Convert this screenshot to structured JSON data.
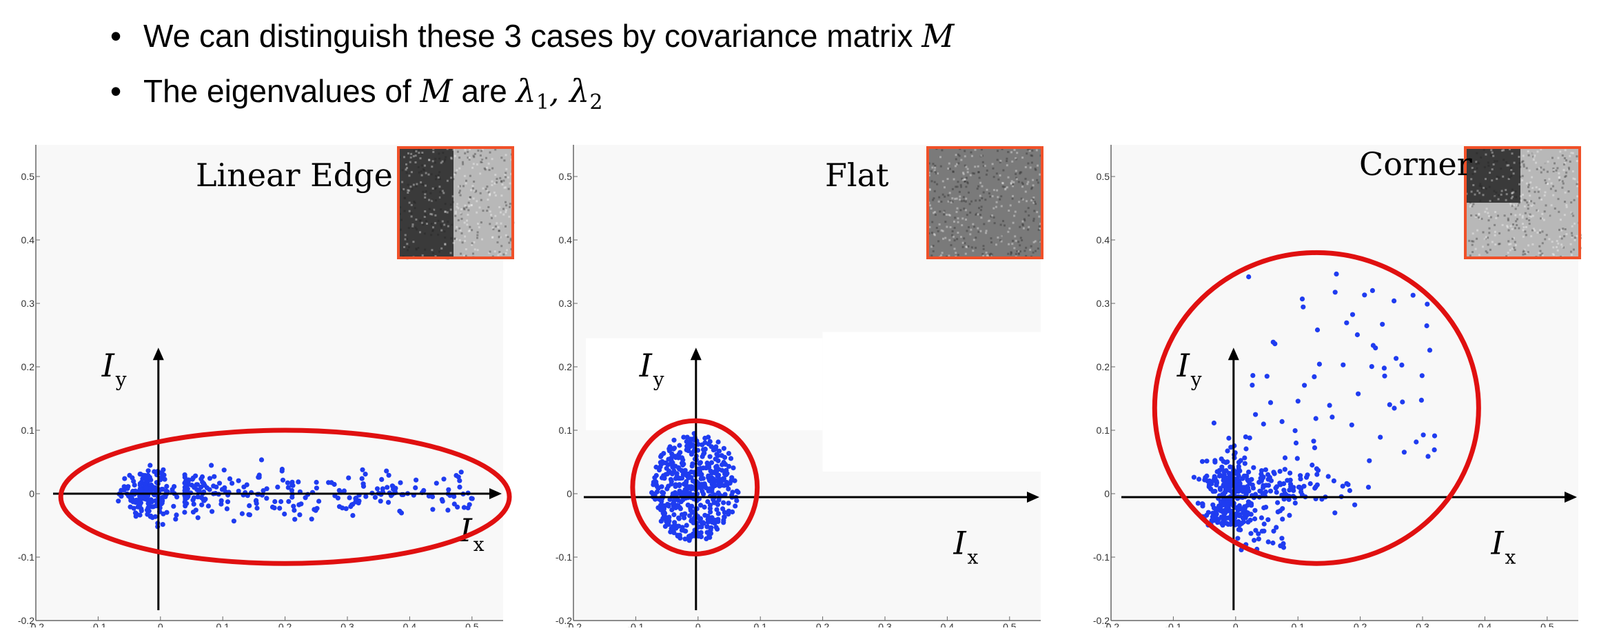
{
  "bullets": [
    {
      "text": "We can distinguish these 3 cases by covariance matrix ",
      "math": "M"
    },
    {
      "text_a": "The eigenvalues of ",
      "math_a": "M",
      "text_b": " are ",
      "lambda": "λ",
      "sub1": "1",
      "comma": ", ",
      "sub2": "2"
    }
  ],
  "colors": {
    "points": "#1f3cf0",
    "ellipse": "#e01010",
    "thumb_border": "#f05028",
    "panel_bg": "#f8f8f8"
  },
  "axis_labels": {
    "x_main": "I",
    "x_sub": "x",
    "y_main": "I",
    "y_sub": "y"
  },
  "chart_data": [
    {
      "type": "scatter",
      "title": "Linear Edge",
      "xlim": [
        -0.2,
        0.55
      ],
      "ylim": [
        -0.2,
        0.55
      ],
      "xticks": [
        "-0.2",
        "-0.1",
        "0",
        "0.1",
        "0.2",
        "0.3",
        "0.4",
        "0.5"
      ],
      "yticks": [
        "0.5",
        "0.4",
        "0.3",
        "0.2",
        "0.1",
        "0",
        "-0.1",
        "-0.2"
      ],
      "thumbnail": "vertical-edge",
      "distribution": {
        "cx": 0.12,
        "cy": 0.0,
        "sx": 0.29,
        "sy": 0.085
      },
      "ellipse": {
        "cx": 0.2,
        "cy": -0.005,
        "rx": 0.36,
        "ry": 0.105
      }
    },
    {
      "type": "scatter",
      "title": "Flat",
      "xlim": [
        -0.2,
        0.55
      ],
      "ylim": [
        -0.2,
        0.55
      ],
      "xticks": [
        "-0.2",
        "-0.1",
        "0",
        "0.1",
        "0.2",
        "0.3",
        "0.4",
        "0.5"
      ],
      "yticks": [
        "0.5",
        "0.4",
        "0.3",
        "0.2",
        "0.1",
        "0",
        "-0.1",
        "-0.2"
      ],
      "thumbnail": "uniform-noise",
      "distribution": {
        "cx": -0.005,
        "cy": 0.01,
        "sx": 0.07,
        "sy": 0.085
      },
      "ellipse": {
        "cx": -0.005,
        "cy": 0.01,
        "rx": 0.1,
        "ry": 0.105
      }
    },
    {
      "type": "scatter",
      "title": "Corner",
      "xlim": [
        -0.2,
        0.55
      ],
      "ylim": [
        -0.2,
        0.55
      ],
      "xticks": [
        "-0.2",
        "-0.1",
        "0",
        "0.1",
        "0.2",
        "0.3",
        "0.4",
        "0.5"
      ],
      "yticks": [
        "0.5",
        "0.4",
        "0.3",
        "0.2",
        "0.1",
        "0",
        "-0.1",
        "-0.2"
      ],
      "thumbnail": "corner",
      "distribution": {
        "type": "L-shape"
      },
      "ellipse": {
        "cx": 0.13,
        "cy": 0.135,
        "rx": 0.26,
        "ry": 0.245
      }
    }
  ]
}
